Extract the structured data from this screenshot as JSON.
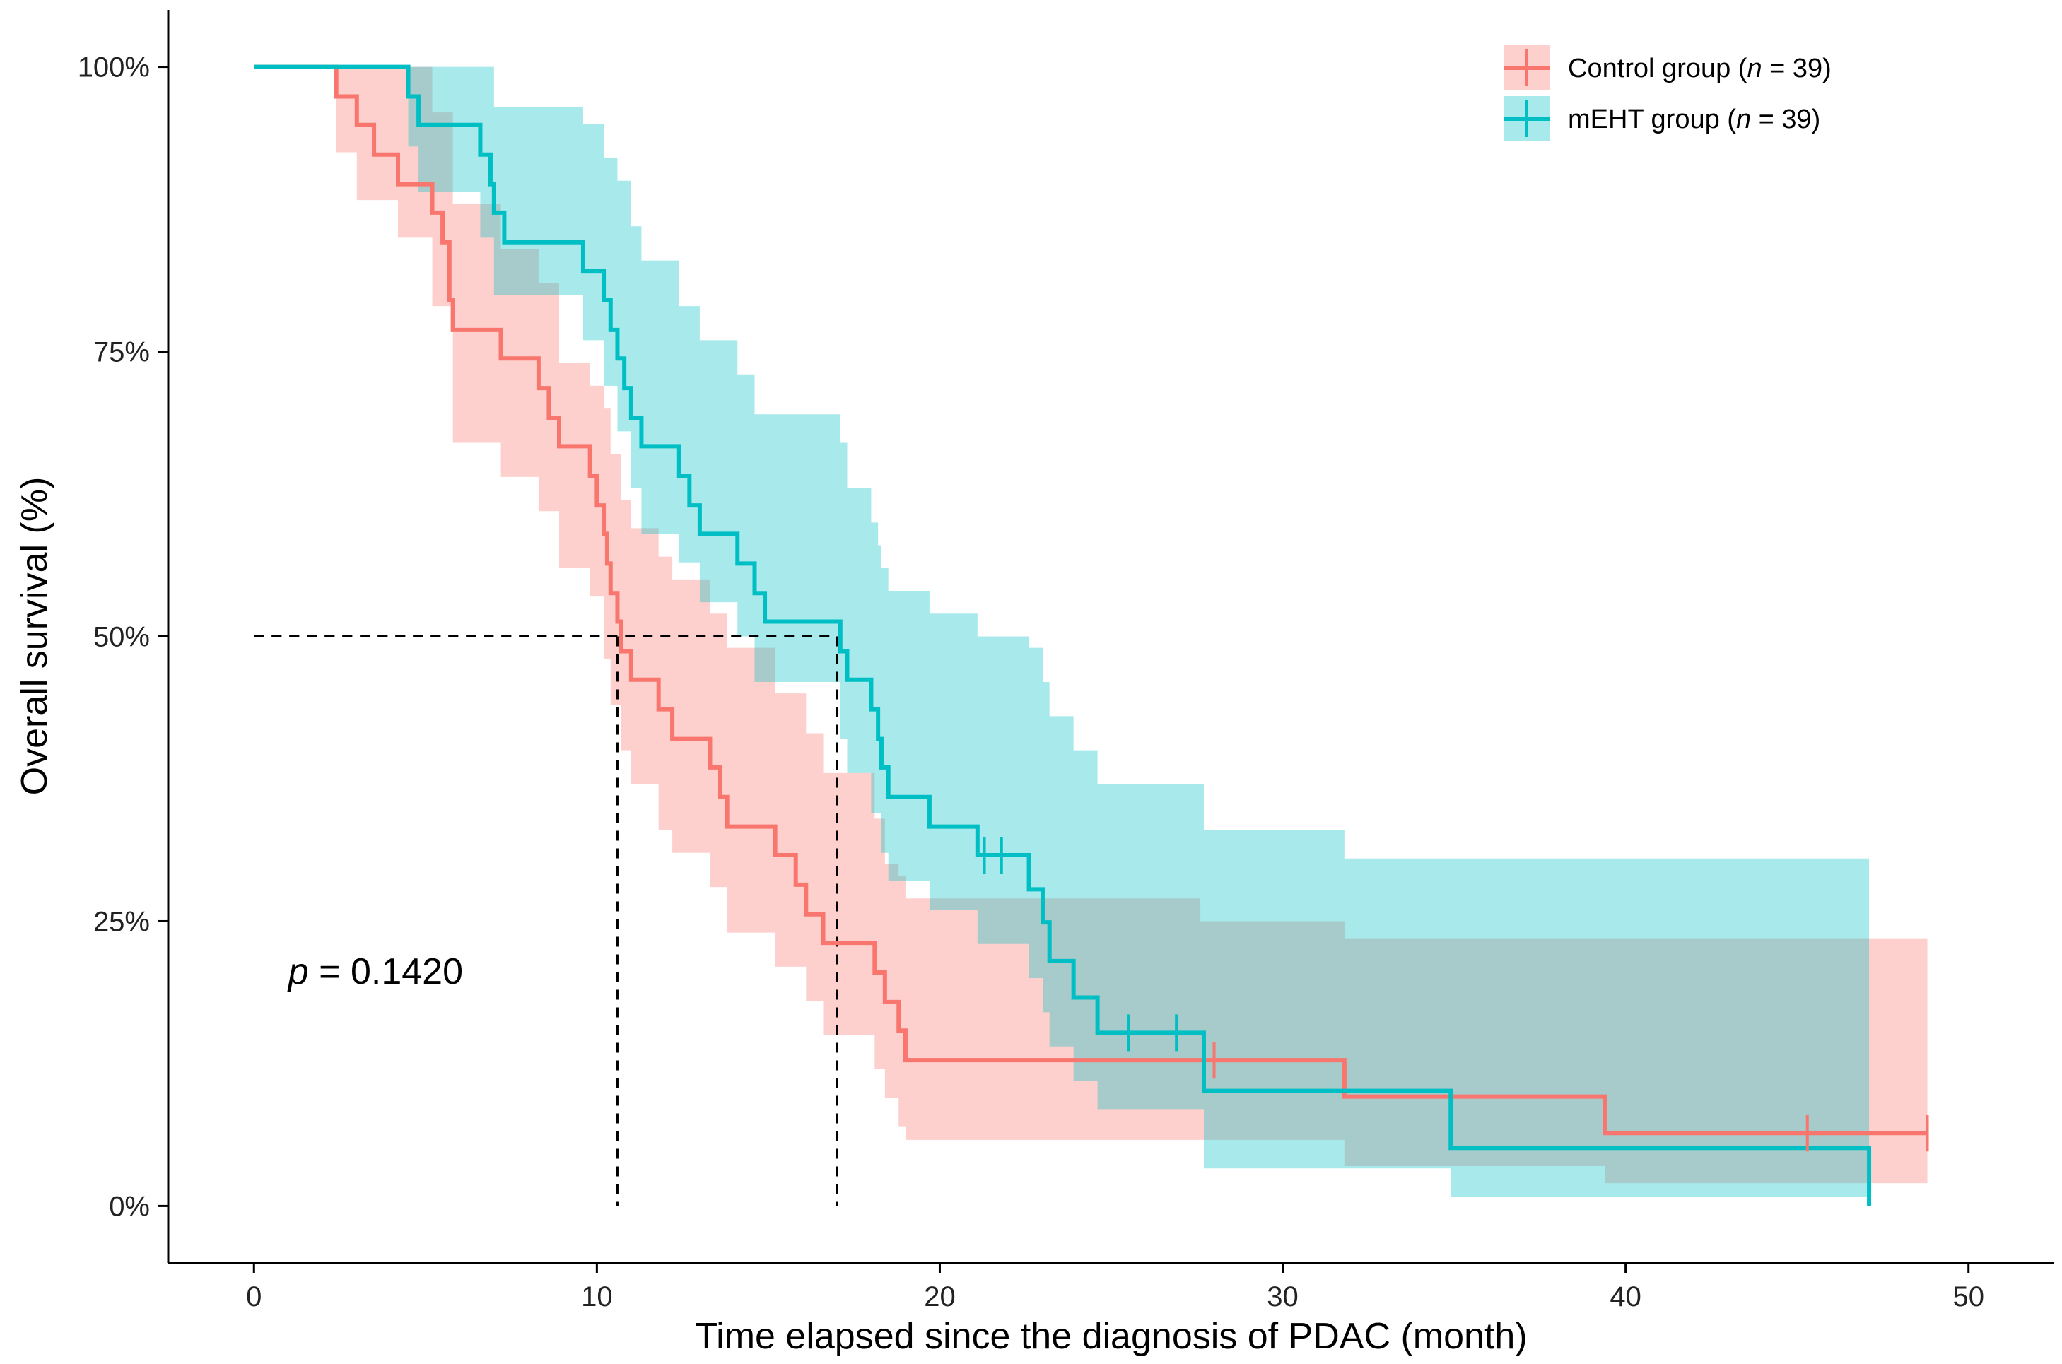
{
  "chart_data": {
    "type": "line",
    "subtype": "kaplan-meier",
    "title": "",
    "xlabel": "Time elapsed since the diagnosis of PDAC (month)",
    "ylabel": "Overall survival (%)",
    "xlim": [
      -2.5,
      52.5
    ],
    "ylim": [
      -5,
      105
    ],
    "x_ticks": [
      0,
      10,
      20,
      30,
      40,
      50
    ],
    "y_ticks": [
      0,
      25,
      50,
      75,
      100
    ],
    "y_tick_suffix": "%",
    "grid": false,
    "legend_position": "top-right",
    "annotation": {
      "p_symbol": "p",
      "text": " = 0.1420",
      "x": 1,
      "y": 19.5
    },
    "median_lines": [
      {
        "series": "Control group",
        "x": 10.6,
        "y": 50
      },
      {
        "series": "mEHT group",
        "x": 17.0,
        "y": 50
      }
    ],
    "series": [
      {
        "name": "Control group",
        "legend_prefix": "Control group (",
        "legend_italic": "n",
        "legend_suffix": " = 39)",
        "color": "#F8766D",
        "band_color": "#F8766D",
        "steps": [
          [
            0,
            100
          ],
          [
            2.4,
            97.4
          ],
          [
            3.0,
            94.9
          ],
          [
            3.5,
            92.3
          ],
          [
            4.2,
            89.7
          ],
          [
            5.2,
            87.2
          ],
          [
            5.5,
            84.6
          ],
          [
            5.7,
            79.5
          ],
          [
            5.8,
            76.9
          ],
          [
            7.2,
            74.4
          ],
          [
            8.3,
            71.8
          ],
          [
            8.6,
            69.2
          ],
          [
            8.9,
            66.7
          ],
          [
            9.8,
            64.1
          ],
          [
            10.0,
            61.5
          ],
          [
            10.2,
            59.0
          ],
          [
            10.3,
            56.4
          ],
          [
            10.4,
            53.8
          ],
          [
            10.6,
            51.3
          ],
          [
            10.7,
            48.7
          ],
          [
            11.0,
            46.2
          ],
          [
            11.8,
            43.6
          ],
          [
            12.2,
            41.0
          ],
          [
            13.3,
            38.5
          ],
          [
            13.6,
            35.9
          ],
          [
            13.8,
            33.3
          ],
          [
            15.2,
            30.8
          ],
          [
            15.8,
            28.2
          ],
          [
            16.1,
            25.6
          ],
          [
            16.6,
            23.1
          ],
          [
            18.1,
            20.5
          ],
          [
            18.4,
            17.9
          ],
          [
            18.8,
            15.4
          ],
          [
            19.0,
            12.8
          ],
          [
            31.8,
            9.6
          ],
          [
            39.4,
            6.4
          ],
          [
            48.8,
            6.4
          ]
        ],
        "lower": [
          [
            0,
            100
          ],
          [
            2.4,
            92.5
          ],
          [
            3.0,
            88.3
          ],
          [
            4.2,
            85.0
          ],
          [
            5.2,
            79.0
          ],
          [
            5.8,
            67.0
          ],
          [
            7.2,
            64.0
          ],
          [
            8.3,
            61.0
          ],
          [
            8.9,
            56.0
          ],
          [
            9.8,
            53.5
          ],
          [
            10.2,
            48.0
          ],
          [
            10.4,
            44.0
          ],
          [
            10.7,
            40.0
          ],
          [
            11.0,
            37.0
          ],
          [
            11.8,
            33.0
          ],
          [
            12.2,
            31.0
          ],
          [
            13.3,
            28.0
          ],
          [
            13.8,
            24.0
          ],
          [
            15.2,
            21.0
          ],
          [
            16.1,
            18.0
          ],
          [
            16.6,
            15.0
          ],
          [
            18.1,
            12.0
          ],
          [
            18.4,
            9.5
          ],
          [
            18.8,
            7.0
          ],
          [
            19.0,
            5.8
          ],
          [
            31.8,
            3.5
          ],
          [
            39.4,
            2.0
          ],
          [
            48.8,
            2.0
          ]
        ],
        "upper": [
          [
            0,
            100
          ],
          [
            2.4,
            100
          ],
          [
            4.2,
            100
          ],
          [
            5.2,
            96.0
          ],
          [
            5.8,
            88.0
          ],
          [
            7.2,
            84.0
          ],
          [
            8.3,
            81.0
          ],
          [
            8.9,
            74.0
          ],
          [
            9.8,
            72.0
          ],
          [
            10.2,
            70.0
          ],
          [
            10.4,
            66.0
          ],
          [
            10.7,
            62.0
          ],
          [
            11.0,
            59.5
          ],
          [
            11.8,
            57.0
          ],
          [
            12.2,
            55.0
          ],
          [
            13.3,
            52.0
          ],
          [
            13.8,
            49.0
          ],
          [
            15.2,
            45.0
          ],
          [
            16.1,
            41.5
          ],
          [
            16.6,
            38.0
          ],
          [
            18.1,
            34.0
          ],
          [
            18.4,
            30.0
          ],
          [
            18.8,
            29.0
          ],
          [
            19.0,
            27.0
          ],
          [
            27.6,
            25.0
          ],
          [
            31.8,
            23.5
          ],
          [
            39.4,
            23.5
          ],
          [
            48.8,
            23.0
          ]
        ],
        "censored": [
          [
            28.0,
            12.8
          ],
          [
            45.3,
            6.4
          ],
          [
            48.8,
            6.4
          ]
        ]
      },
      {
        "name": "mEHT group",
        "legend_prefix": "mEHT group (",
        "legend_italic": "n",
        "legend_suffix": " = 39)",
        "color": "#00BFC4",
        "band_color": "#00BFC4",
        "steps": [
          [
            0,
            100
          ],
          [
            4.5,
            97.4
          ],
          [
            4.8,
            94.9
          ],
          [
            6.6,
            92.3
          ],
          [
            6.9,
            89.7
          ],
          [
            7.0,
            87.2
          ],
          [
            7.3,
            84.6
          ],
          [
            9.6,
            82.1
          ],
          [
            10.2,
            79.5
          ],
          [
            10.4,
            76.9
          ],
          [
            10.6,
            74.4
          ],
          [
            10.8,
            71.8
          ],
          [
            11.0,
            69.2
          ],
          [
            11.3,
            66.7
          ],
          [
            12.4,
            64.1
          ],
          [
            12.7,
            61.5
          ],
          [
            13.0,
            59.0
          ],
          [
            14.1,
            56.4
          ],
          [
            14.6,
            53.8
          ],
          [
            14.9,
            51.3
          ],
          [
            17.1,
            48.7
          ],
          [
            17.3,
            46.2
          ],
          [
            18.0,
            43.6
          ],
          [
            18.2,
            41.0
          ],
          [
            18.3,
            38.5
          ],
          [
            18.5,
            35.9
          ],
          [
            19.7,
            33.3
          ],
          [
            21.1,
            30.8
          ],
          [
            22.6,
            27.8
          ],
          [
            23.0,
            24.9
          ],
          [
            23.2,
            21.5
          ],
          [
            23.9,
            18.3
          ],
          [
            24.6,
            15.2
          ],
          [
            27.7,
            10.1
          ],
          [
            34.9,
            5.1
          ],
          [
            47.0,
            5.1
          ],
          [
            47.1,
            0
          ]
        ],
        "lower": [
          [
            0,
            100
          ],
          [
            4.5,
            93.0
          ],
          [
            4.8,
            89.0
          ],
          [
            6.6,
            85.0
          ],
          [
            7.0,
            80.0
          ],
          [
            9.6,
            76.0
          ],
          [
            10.2,
            72.0
          ],
          [
            10.6,
            68.0
          ],
          [
            11.0,
            63.0
          ],
          [
            11.3,
            59.0
          ],
          [
            12.4,
            56.5
          ],
          [
            13.0,
            53.0
          ],
          [
            14.1,
            50.0
          ],
          [
            14.6,
            46.0
          ],
          [
            17.1,
            41.0
          ],
          [
            17.3,
            38.0
          ],
          [
            18.0,
            34.5
          ],
          [
            18.3,
            31.0
          ],
          [
            18.5,
            28.5
          ],
          [
            19.7,
            26.0
          ],
          [
            21.1,
            23.0
          ],
          [
            22.6,
            20.0
          ],
          [
            23.0,
            17.0
          ],
          [
            23.2,
            14.0
          ],
          [
            23.9,
            11.0
          ],
          [
            24.6,
            8.5
          ],
          [
            27.7,
            3.3
          ],
          [
            34.9,
            0.8
          ],
          [
            47.1,
            0.8
          ]
        ],
        "upper": [
          [
            0,
            100
          ],
          [
            4.5,
            100
          ],
          [
            6.6,
            100
          ],
          [
            7.0,
            96.5
          ],
          [
            9.6,
            95.0
          ],
          [
            10.2,
            92.0
          ],
          [
            10.6,
            90.0
          ],
          [
            11.0,
            86.0
          ],
          [
            11.3,
            83.0
          ],
          [
            12.4,
            79.0
          ],
          [
            13.0,
            76.0
          ],
          [
            14.1,
            73.0
          ],
          [
            14.6,
            69.5
          ],
          [
            17.1,
            67.0
          ],
          [
            17.3,
            63.0
          ],
          [
            18.0,
            60.0
          ],
          [
            18.2,
            58.0
          ],
          [
            18.3,
            56.0
          ],
          [
            18.5,
            54.0
          ],
          [
            19.7,
            52.0
          ],
          [
            21.1,
            50.0
          ],
          [
            22.6,
            49.0
          ],
          [
            23.0,
            46.0
          ],
          [
            23.2,
            43.0
          ],
          [
            23.9,
            40.0
          ],
          [
            24.6,
            37.0
          ],
          [
            27.7,
            33.0
          ],
          [
            31.8,
            30.5
          ],
          [
            34.9,
            30.5
          ],
          [
            47.1,
            30.5
          ]
        ],
        "censored": [
          [
            21.3,
            30.8
          ],
          [
            21.8,
            30.8
          ],
          [
            25.5,
            15.2
          ],
          [
            26.9,
            15.2
          ]
        ]
      }
    ]
  }
}
